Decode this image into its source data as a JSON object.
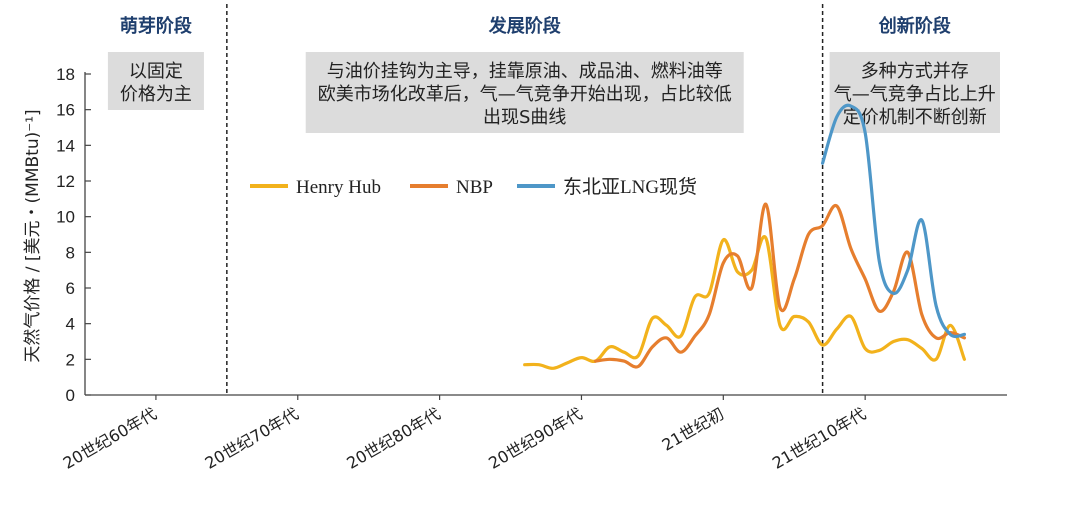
{
  "chart_data": {
    "type": "line",
    "ylabel": "天然气价格 / [美元・(MMBtu)⁻¹]",
    "ylim": [
      0,
      18
    ],
    "yticks": [
      0,
      2,
      4,
      6,
      8,
      10,
      12,
      14,
      16,
      18
    ],
    "xlim": [
      1960,
      2025
    ],
    "x_tick_labels": [
      {
        "label": "20世纪60年代",
        "x": 1965
      },
      {
        "label": "20世纪70年代",
        "x": 1975
      },
      {
        "label": "20世纪80年代",
        "x": 1985
      },
      {
        "label": "20世纪90年代",
        "x": 1995
      },
      {
        "label": "21世纪初",
        "x": 2005
      },
      {
        "label": "21世纪10年代",
        "x": 2015
      }
    ],
    "phases": [
      {
        "title": "萌芽阶段",
        "x_start": 1960,
        "x_end": 1970,
        "note_lines": [
          "以固定",
          "价格为主"
        ]
      },
      {
        "title": "发展阶段",
        "x_start": 1970,
        "x_end": 2012,
        "note_lines": [
          "与油价挂钩为主导，挂靠原油、成品油、燃料油等",
          "欧美市场化改革后，气—气竞争开始出现，占比较低",
          "出现S曲线"
        ]
      },
      {
        "title": "创新阶段",
        "x_start": 2012,
        "x_end": 2025,
        "note_lines": [
          "多种方式并存",
          "气—气竞争占比上升",
          "定价机制不断创新"
        ]
      }
    ],
    "series": [
      {
        "name": "Henry Hub",
        "color": "#f2b21c",
        "x": [
          1991,
          1992,
          1993,
          1994,
          1995,
          1996,
          1997,
          1998,
          1999,
          2000,
          2001,
          2002,
          2003,
          2004,
          2005,
          2006,
          2007,
          2008,
          2009,
          2010,
          2011,
          2012,
          2013,
          2014,
          2015,
          2016,
          2017,
          2018,
          2019,
          2020,
          2021,
          2022
        ],
        "y": [
          1.7,
          1.7,
          1.5,
          1.8,
          2.1,
          1.9,
          2.7,
          2.4,
          2.2,
          4.3,
          3.9,
          3.3,
          5.5,
          5.7,
          8.7,
          6.9,
          7.0,
          8.8,
          3.9,
          4.4,
          4.1,
          2.8,
          3.7,
          4.4,
          2.6,
          2.5,
          3.0,
          3.1,
          2.6,
          2.0,
          3.9,
          2.0
        ]
      },
      {
        "name": "NBP",
        "color": "#e67e2e",
        "x": [
          1996,
          1997,
          1998,
          1999,
          2000,
          2001,
          2002,
          2003,
          2004,
          2005,
          2006,
          2007,
          2008,
          2009,
          2010,
          2011,
          2012,
          2013,
          2014,
          2015,
          2016,
          2017,
          2018,
          2019,
          2020,
          2021,
          2022
        ],
        "y": [
          1.9,
          2.0,
          1.9,
          1.6,
          2.7,
          3.2,
          2.4,
          3.3,
          4.5,
          7.4,
          7.8,
          6.0,
          10.7,
          4.9,
          6.5,
          9.0,
          9.5,
          10.6,
          8.2,
          6.5,
          4.7,
          5.8,
          8.0,
          4.5,
          3.2,
          3.5,
          3.2
        ]
      },
      {
        "name": "东北亚LNG现货",
        "color": "#4e97c8",
        "x": [
          2012,
          2013,
          2014,
          2015,
          2016,
          2017,
          2018,
          2019,
          2020,
          2021,
          2022
        ],
        "y": [
          13.0,
          15.6,
          16.2,
          14.7,
          7.5,
          5.7,
          7.0,
          9.8,
          5.0,
          3.4,
          3.4
        ]
      }
    ],
    "legend": {
      "position": "top-center"
    },
    "grid": false
  }
}
